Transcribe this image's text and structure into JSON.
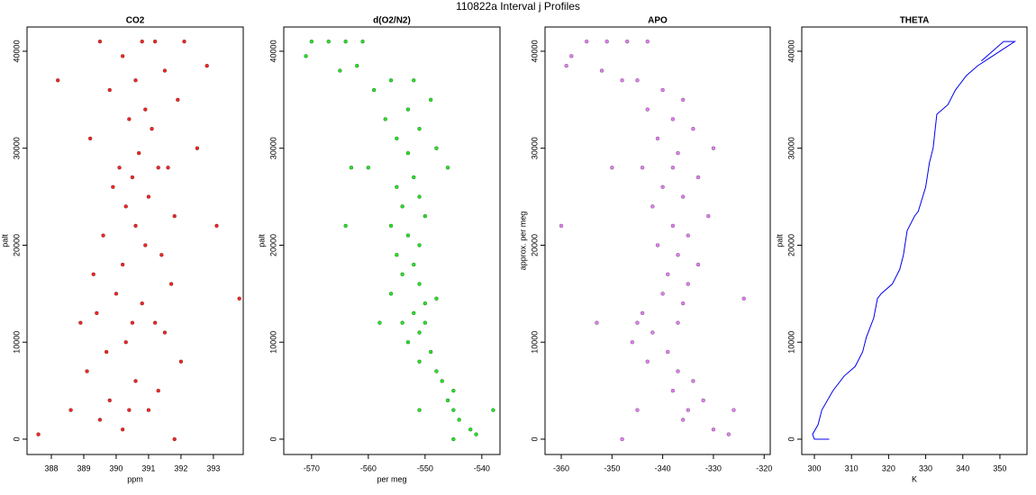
{
  "title": "110822a   Interval j Profiles",
  "chart_data": [
    {
      "type": "scatter",
      "title": "CO2",
      "xlabel": "ppm",
      "ylabel": "palt",
      "xlim": [
        387.25,
        393.92
      ],
      "ylim": [
        -1580,
        42500
      ],
      "xticks": [
        388,
        389,
        390,
        391,
        392,
        393
      ],
      "yticks": [
        0,
        10000,
        20000,
        30000,
        40000
      ],
      "series": [
        {
          "color": "#ee0000",
          "x": [
            390.8,
            391.2,
            389.5,
            392.1,
            390.2,
            391.5,
            390.6,
            389.8,
            391.9,
            390.9,
            390.4,
            391.1,
            389.2,
            392.5,
            390.7,
            391.3,
            390.1,
            391.6,
            390.5,
            389.9,
            391.0,
            390.3,
            391.8,
            390.6,
            389.6,
            390.9,
            391.4,
            390.2,
            389.3,
            391.7,
            390.0,
            390.8,
            389.4,
            391.2,
            390.5,
            388.9,
            391.5,
            390.3,
            389.7,
            392.0,
            389.1,
            390.6,
            391.3,
            389.8,
            390.4,
            388.6,
            391.0,
            389.5,
            390.2,
            391.8,
            387.6,
            393.8,
            393.1,
            388.2,
            392.8
          ],
          "y": [
            41000,
            41000,
            41000,
            41000,
            39500,
            38000,
            37000,
            36000,
            35000,
            34000,
            33000,
            32000,
            31000,
            30000,
            29500,
            28000,
            28000,
            28000,
            27000,
            26000,
            25000,
            24000,
            23000,
            22000,
            21000,
            20000,
            19000,
            18000,
            17000,
            16000,
            15000,
            14000,
            13000,
            12000,
            12000,
            12000,
            11000,
            10000,
            9000,
            8000,
            7000,
            6000,
            5000,
            4000,
            3000,
            3000,
            3000,
            2000,
            1000,
            0,
            500,
            14500,
            22000,
            37000,
            38500
          ]
        }
      ]
    },
    {
      "type": "scatter",
      "title": "d(O2/N2)",
      "xlabel": "per meg",
      "ylabel": "palt",
      "xlim": [
        -574.9,
        -536.8
      ],
      "ylim": [
        -1580,
        42500
      ],
      "xticks": [
        -570,
        -560,
        -550,
        -540
      ],
      "yticks": [
        0,
        10000,
        20000,
        30000,
        40000
      ],
      "series": [
        {
          "color": "#00dd00",
          "x": [
            -570,
            -567,
            -564,
            -561,
            -571,
            -565,
            -556,
            -559,
            -549,
            -553,
            -557,
            -551,
            -555,
            -548,
            -553,
            -563,
            -560,
            -546,
            -552,
            -555,
            -551,
            -554,
            -550,
            -556,
            -553,
            -551,
            -555,
            -552,
            -554,
            -551,
            -556,
            -550,
            -552,
            -558,
            -554,
            -550,
            -551,
            -553,
            -549,
            -551,
            -548,
            -547,
            -545,
            -546,
            -551,
            -545,
            -538,
            -544,
            -542,
            -545,
            -541,
            -548,
            -564,
            -552,
            -562
          ],
          "y": [
            41000,
            41000,
            41000,
            41000,
            39500,
            38000,
            37000,
            36000,
            35000,
            34000,
            33000,
            32000,
            31000,
            30000,
            29500,
            28000,
            28000,
            28000,
            27000,
            26000,
            25000,
            24000,
            23000,
            22000,
            21000,
            20000,
            19000,
            18000,
            17000,
            16000,
            15000,
            14000,
            13000,
            12000,
            12000,
            12000,
            11000,
            10000,
            9000,
            8000,
            7000,
            6000,
            5000,
            4000,
            3000,
            3000,
            3000,
            2000,
            1000,
            0,
            500,
            14500,
            22000,
            37000,
            38500
          ]
        }
      ]
    },
    {
      "type": "scatter",
      "title": "APO",
      "ylabel": "approx. per meg",
      "xlim": [
        -363.2,
        -318.8
      ],
      "ylim": [
        -1580,
        42500
      ],
      "xticks": [
        -360,
        -350,
        -340,
        -330,
        -320
      ],
      "yticks": [
        0,
        10000,
        20000,
        30000,
        40000
      ],
      "series": [
        {
          "color": "#dd66ee",
          "x": [
            -355,
            -351,
            -347,
            -343,
            -358,
            -352,
            -345,
            -340,
            -336,
            -343,
            -338,
            -334,
            -341,
            -330,
            -337,
            -350,
            -344,
            -338,
            -333,
            -340,
            -336,
            -342,
            -331,
            -338,
            -335,
            -341,
            -337,
            -333,
            -339,
            -335,
            -340,
            -336,
            -344,
            -353,
            -345,
            -337,
            -342,
            -346,
            -339,
            -343,
            -337,
            -334,
            -338,
            -332,
            -345,
            -335,
            -326,
            -336,
            -330,
            -348,
            -327,
            -324,
            -360,
            -348,
            -359
          ],
          "y": [
            41000,
            41000,
            41000,
            41000,
            39500,
            38000,
            37000,
            36000,
            35000,
            34000,
            33000,
            32000,
            31000,
            30000,
            29500,
            28000,
            28000,
            28000,
            27000,
            26000,
            25000,
            24000,
            23000,
            22000,
            21000,
            20000,
            19000,
            18000,
            17000,
            16000,
            15000,
            14000,
            13000,
            12000,
            12000,
            12000,
            11000,
            10000,
            9000,
            8000,
            7000,
            6000,
            5000,
            4000,
            3000,
            3000,
            3000,
            2000,
            1000,
            0,
            500,
            14500,
            22000,
            37000,
            38500
          ]
        }
      ]
    },
    {
      "type": "line",
      "title": "THETA",
      "xlabel": "K",
      "ylabel": "palt",
      "xlim": [
        296.6,
        357.3
      ],
      "ylim": [
        -1580,
        42500
      ],
      "xticks": [
        300,
        310,
        320,
        330,
        340,
        350
      ],
      "yticks": [
        0,
        10000,
        20000,
        30000,
        40000
      ],
      "series": [
        {
          "color": "#0000ee",
          "x": [
            304,
            300,
            299.5,
            301,
            302,
            305,
            308,
            311,
            313,
            314,
            316,
            317,
            318,
            321,
            323,
            324,
            325,
            327,
            328,
            330,
            331,
            332,
            333,
            336,
            338,
            341,
            344,
            348,
            352,
            354,
            351,
            345
          ],
          "y": [
            0,
            0,
            500,
            1500,
            3000,
            5000,
            6500,
            7500,
            9000,
            10500,
            12500,
            14500,
            15000,
            16000,
            17500,
            19000,
            21500,
            23000,
            23500,
            26000,
            28500,
            30000,
            33500,
            34500,
            36000,
            37500,
            38500,
            39500,
            40500,
            41000,
            41000,
            39000
          ]
        }
      ]
    }
  ]
}
